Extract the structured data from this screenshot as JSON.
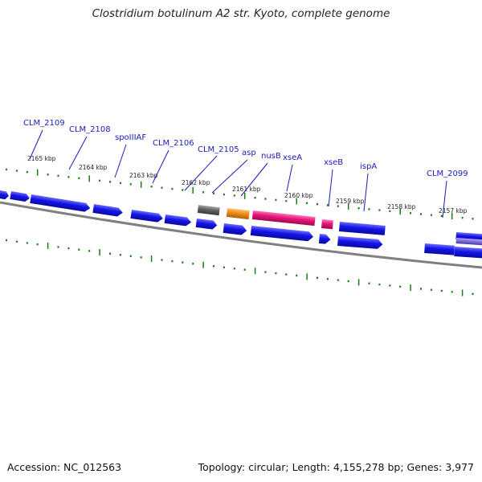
{
  "title": "Clostridium botulinum A2 str. Kyoto, complete genome",
  "accession": "Accession: NC_012563",
  "summary": "Topology: circular; Length: 4,155,278 bp; Genes: 3,977",
  "colors": {
    "cds_blue": "#1414e6",
    "cds_pink": "#e6147a",
    "cds_orange": "#f08c14",
    "cds_gray": "#606060",
    "backbone": "#707070",
    "ticks": "#1a7a1a",
    "label": "#1a1ab8",
    "purple_feature": "#7a6ad8"
  },
  "kbp_labels": [
    "2165 kbp",
    "2164 kbp",
    "2163 kbp",
    "2162 kbp",
    "2161 kbp",
    "2160 kbp",
    "2159 kbp",
    "2158 kbp",
    "2157 kbp"
  ],
  "gene_labels": [
    "CLM_2109",
    "CLM_2108",
    "spoIIIAF",
    "CLM_2106",
    "CLM_2105",
    "asp",
    "nusB",
    "xseA",
    "xseB",
    "ispA",
    "CLM_2099"
  ]
}
